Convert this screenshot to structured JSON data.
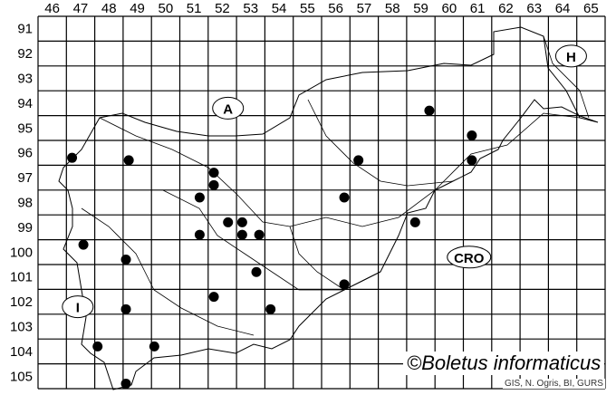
{
  "map": {
    "grid": {
      "columns": [
        "46",
        "47",
        "48",
        "49",
        "50",
        "51",
        "52",
        "53",
        "54",
        "55",
        "56",
        "57",
        "58",
        "59",
        "60",
        "61",
        "62",
        "63",
        "64",
        "65"
      ],
      "rows": [
        "91",
        "92",
        "93",
        "94",
        "95",
        "96",
        "97",
        "98",
        "99",
        "100",
        "101",
        "102",
        "103",
        "104",
        "105"
      ]
    },
    "country_labels": [
      {
        "text": "A",
        "col": 52.7,
        "row": 94.7
      },
      {
        "text": "H",
        "col": 64.8,
        "row": 92.6
      },
      {
        "text": "CRO",
        "col": 61.2,
        "row": 100.7
      },
      {
        "text": "I",
        "col": 47.4,
        "row": 102.7
      }
    ],
    "records": [
      {
        "col": 47.2,
        "row": 96.7
      },
      {
        "col": 49.2,
        "row": 96.8
      },
      {
        "col": 52.2,
        "row": 97.3
      },
      {
        "col": 52.2,
        "row": 97.8
      },
      {
        "col": 51.7,
        "row": 98.3
      },
      {
        "col": 59.8,
        "row": 94.8
      },
      {
        "col": 61.3,
        "row": 95.8
      },
      {
        "col": 61.3,
        "row": 96.8
      },
      {
        "col": 57.3,
        "row": 96.8
      },
      {
        "col": 56.8,
        "row": 98.3
      },
      {
        "col": 59.3,
        "row": 99.3
      },
      {
        "col": 47.6,
        "row": 100.2
      },
      {
        "col": 49.1,
        "row": 100.8
      },
      {
        "col": 51.7,
        "row": 99.8
      },
      {
        "col": 52.7,
        "row": 99.3
      },
      {
        "col": 53.2,
        "row": 99.3
      },
      {
        "col": 53.2,
        "row": 99.8
      },
      {
        "col": 53.8,
        "row": 99.8
      },
      {
        "col": 53.7,
        "row": 101.3
      },
      {
        "col": 52.2,
        "row": 102.3
      },
      {
        "col": 56.8,
        "row": 101.8
      },
      {
        "col": 49.1,
        "row": 102.8
      },
      {
        "col": 54.2,
        "row": 102.8
      },
      {
        "col": 48.1,
        "row": 104.3
      },
      {
        "col": 50.1,
        "row": 104.3
      },
      {
        "col": 49.1,
        "row": 105.8
      }
    ],
    "credit": "©Boletus informaticus",
    "source": "GIS, N. Ogris, BI, GURS",
    "marker_color": "#000000"
  }
}
